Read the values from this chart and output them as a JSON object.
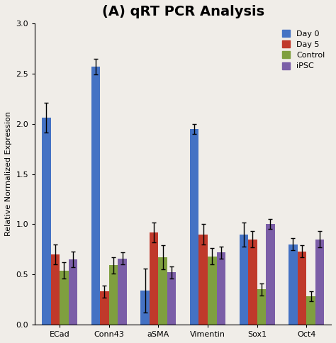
{
  "title": "(A) qRT PCR Analysis",
  "ylabel": "Relative Normalized Expression",
  "categories": [
    "ECad",
    "Conn43",
    "aSMA",
    "Vimentin",
    "Sox1",
    "Oct4"
  ],
  "series": {
    "Day 0": [
      2.06,
      2.57,
      0.34,
      1.95,
      0.9,
      0.8
    ],
    "Day 5": [
      0.7,
      0.33,
      0.92,
      0.9,
      0.85,
      0.73
    ],
    "Control": [
      0.54,
      0.59,
      0.67,
      0.68,
      0.35,
      0.28
    ],
    "iPSC": [
      0.65,
      0.66,
      0.52,
      0.72,
      1.0,
      0.85
    ]
  },
  "errors": {
    "Day 0": [
      0.15,
      0.08,
      0.22,
      0.05,
      0.12,
      0.06
    ],
    "Day 5": [
      0.1,
      0.06,
      0.1,
      0.1,
      0.08,
      0.06
    ],
    "Control": [
      0.08,
      0.08,
      0.12,
      0.08,
      0.06,
      0.05
    ],
    "iPSC": [
      0.08,
      0.06,
      0.06,
      0.06,
      0.05,
      0.08
    ]
  },
  "colors": {
    "Day 0": "#4472C4",
    "Day 5": "#C0392B",
    "Control": "#7F9F3F",
    "iPSC": "#7B5EA7"
  },
  "ylim": [
    0,
    3
  ],
  "yticks": [
    0,
    0.5,
    1.0,
    1.5,
    2.0,
    2.5,
    3.0
  ],
  "background_color": "#F0EDE8",
  "title_fontsize": 14,
  "legend_fontsize": 8,
  "tick_fontsize": 8,
  "label_fontsize": 8
}
